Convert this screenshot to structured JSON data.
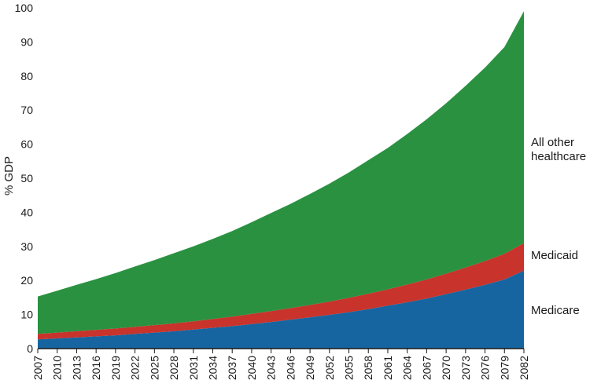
{
  "chart_data": {
    "type": "area",
    "stacked": true,
    "title": "",
    "xlabel": "",
    "ylabel": "% GDP",
    "ylim": [
      0,
      100
    ],
    "yticks": [
      0,
      10,
      20,
      30,
      40,
      50,
      60,
      70,
      80,
      90,
      100
    ],
    "grid": false,
    "legend": "labels at right end of each band",
    "x": [
      2007,
      2010,
      2013,
      2016,
      2019,
      2022,
      2025,
      2028,
      2031,
      2034,
      2037,
      2040,
      2043,
      2046,
      2049,
      2052,
      2055,
      2058,
      2061,
      2064,
      2067,
      2070,
      2073,
      2076,
      2079,
      2082
    ],
    "series": [
      {
        "name": "Medicare",
        "color": "#1665a0",
        "values": [
          2.7,
          3.0,
          3.3,
          3.6,
          3.9,
          4.3,
          4.7,
          5.1,
          5.6,
          6.1,
          6.6,
          7.2,
          7.8,
          8.5,
          9.2,
          9.9,
          10.7,
          11.6,
          12.6,
          13.6,
          14.7,
          16.0,
          17.3,
          18.7,
          20.3,
          22.9
        ]
      },
      {
        "name": "Medicaid",
        "color": "#c8332b",
        "values": [
          1.6,
          1.7,
          1.8,
          1.9,
          2.0,
          2.1,
          2.2,
          2.3,
          2.4,
          2.6,
          2.8,
          3.0,
          3.2,
          3.4,
          3.6,
          3.9,
          4.2,
          4.5,
          4.8,
          5.2,
          5.6,
          6.0,
          6.5,
          7.0,
          7.5,
          8.1
        ]
      },
      {
        "name": "All other healthcare",
        "color": "#2a9141",
        "values": [
          11.0,
          12.3,
          13.6,
          14.9,
          16.3,
          17.7,
          19.1,
          20.6,
          22.0,
          23.5,
          25.1,
          26.9,
          28.8,
          30.6,
          32.6,
          34.6,
          36.8,
          39.2,
          41.5,
          44.2,
          47.0,
          50.0,
          53.3,
          56.8,
          60.7,
          68.0
        ]
      }
    ],
    "series_labels": {
      "medicare": "Medicare",
      "medicaid": "Medicaid",
      "other_line1": "All other",
      "other_line2": "healthcare"
    }
  }
}
